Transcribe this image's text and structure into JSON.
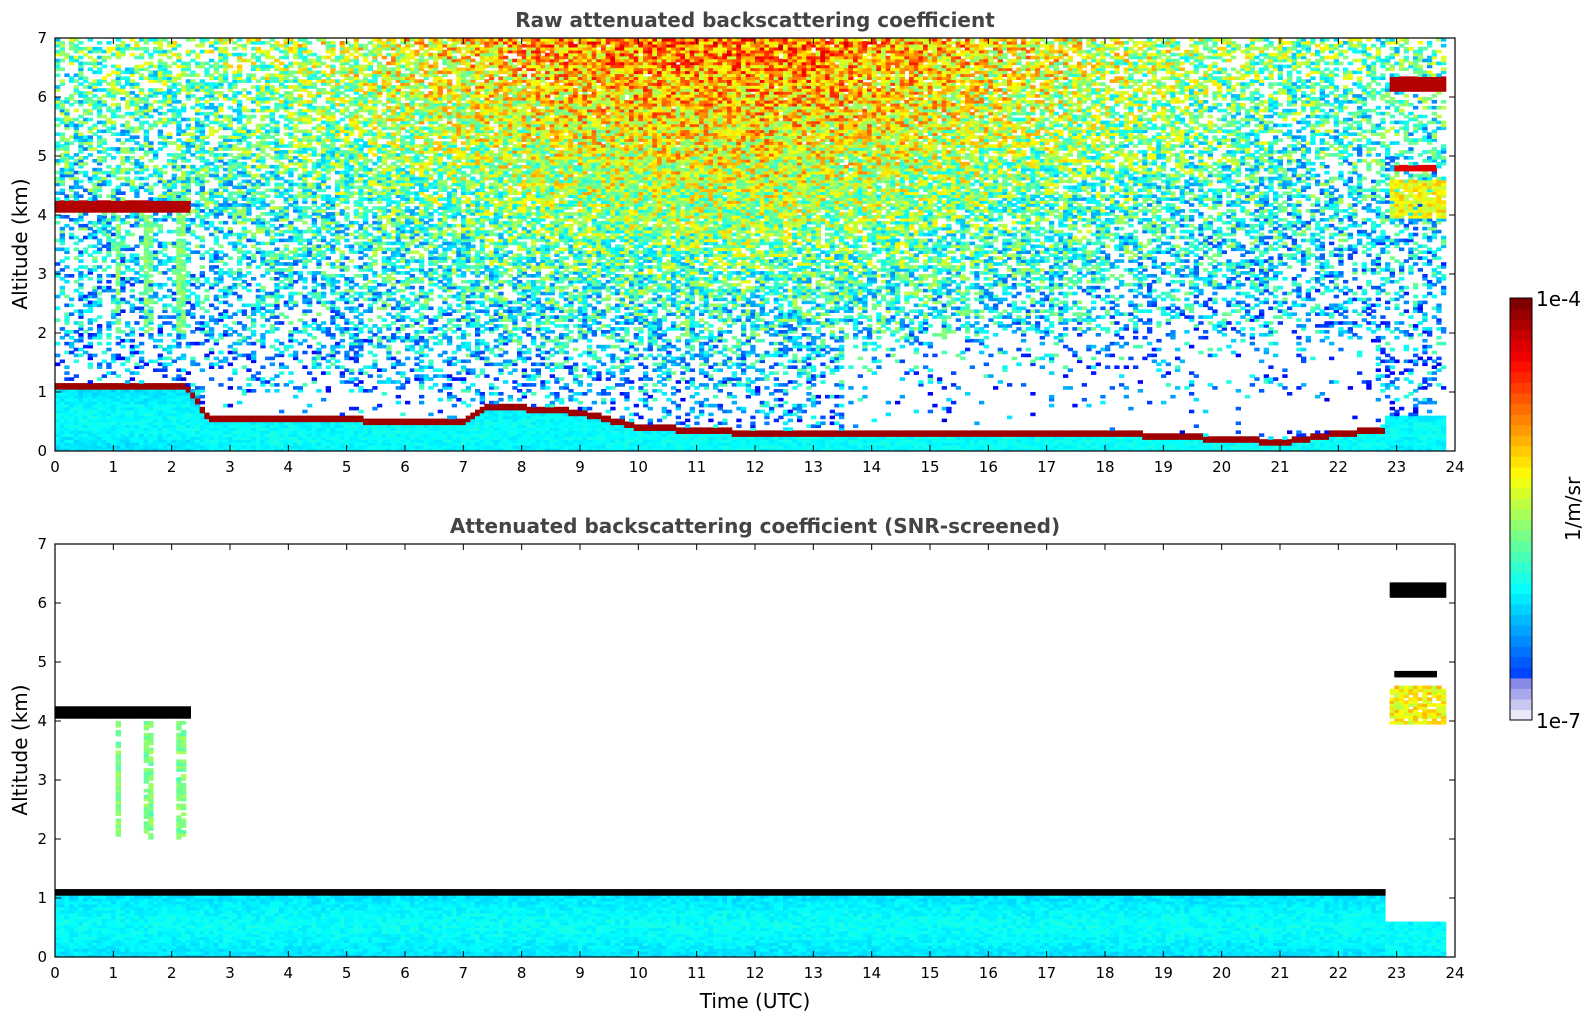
{
  "chart_data": [
    {
      "type": "heatmap",
      "title": "Raw attenuated backscattering coefficient",
      "xlabel": "",
      "ylabel": "Altitude (km)",
      "xlim": [
        0,
        24
      ],
      "ylim": [
        0,
        7
      ],
      "xticks": [
        "0",
        "1",
        "2",
        "3",
        "4",
        "5",
        "6",
        "7",
        "8",
        "9",
        "10",
        "11",
        "12",
        "13",
        "14",
        "15",
        "16",
        "17",
        "18",
        "19",
        "20",
        "21",
        "22",
        "23",
        "24"
      ],
      "yticks": [
        "0",
        "1",
        "2",
        "3",
        "4",
        "5",
        "6",
        "7"
      ],
      "features": [
        {
          "kind": "cloud_layer",
          "x": [
            0,
            2.25
          ],
          "altitude": 4.1,
          "level": 0.95
        },
        {
          "kind": "boundary_layer_top",
          "x": [
            0,
            2.2,
            2.6,
            7.0,
            7.4,
            9.0,
            10.0,
            12.0,
            18.0,
            20.0,
            21.0,
            22.0,
            22.75
          ],
          "altitude": [
            1.05,
            1.05,
            0.5,
            0.45,
            0.72,
            0.6,
            0.35,
            0.25,
            0.25,
            0.15,
            0.1,
            0.25,
            0.3
          ]
        },
        {
          "kind": "cloud_layer",
          "x": [
            22.8,
            23.8
          ],
          "altitude": 6.2,
          "level": 0.95
        },
        {
          "kind": "cloud_layer",
          "x": [
            22.9,
            23.6
          ],
          "altitude": 4.75,
          "level": 0.9
        },
        {
          "kind": "aerosol_layer",
          "x": [
            22.8,
            23.8
          ],
          "altitude": 4.2,
          "level": 0.6
        },
        {
          "kind": "aerosol_layer",
          "x": [
            22.75,
            23.8
          ],
          "altitude": [
            0,
            0.62
          ],
          "level": 0.3
        }
      ],
      "noise": "solar background increasing with altitude, strongest around 10-13 UTC above 4 km"
    },
    {
      "type": "heatmap",
      "title": "Attenuated backscattering coefficient (SNR-screened)",
      "xlabel": "Time (UTC)",
      "ylabel": "Altitude (km)",
      "xlim": [
        0,
        24
      ],
      "ylim": [
        0,
        7
      ],
      "xticks": [
        "0",
        "1",
        "2",
        "3",
        "4",
        "5",
        "6",
        "7",
        "8",
        "9",
        "10",
        "11",
        "12",
        "13",
        "14",
        "15",
        "16",
        "17",
        "18",
        "19",
        "20",
        "21",
        "22",
        "23",
        "24"
      ],
      "yticks": [
        "0",
        "1",
        "2",
        "3",
        "4",
        "5",
        "6",
        "7"
      ],
      "features": [
        {
          "kind": "cloud_layer",
          "x": [
            0,
            2.25
          ],
          "altitude": 4.1,
          "level": 1.0
        },
        {
          "kind": "fall_streaks",
          "x": [
            0,
            2.2
          ],
          "altitude": [
            2.0,
            3.9
          ],
          "level": 0.45
        },
        {
          "kind": "boundary_layer_top",
          "x": [
            0,
            22.75
          ],
          "level": 1.0
        },
        {
          "kind": "cloud_layer",
          "x": [
            22.85,
            23.8
          ],
          "altitude": 6.2,
          "level": 1.0
        },
        {
          "kind": "cloud_layer",
          "x": [
            22.9,
            23.6
          ],
          "altitude": 4.75,
          "level": 1.0
        },
        {
          "kind": "aerosol_layer",
          "x": [
            22.8,
            23.8
          ],
          "altitude": 4.2,
          "level": 0.65
        },
        {
          "kind": "aerosol_layer",
          "x": [
            22.75,
            23.8
          ],
          "altitude": [
            0,
            0.62
          ],
          "level": 0.3
        }
      ]
    }
  ],
  "colorbar": {
    "label": "1/m/sr",
    "min_label": "1e-7",
    "max_label": "1e-4",
    "colormap": "jet",
    "scale": "log"
  }
}
